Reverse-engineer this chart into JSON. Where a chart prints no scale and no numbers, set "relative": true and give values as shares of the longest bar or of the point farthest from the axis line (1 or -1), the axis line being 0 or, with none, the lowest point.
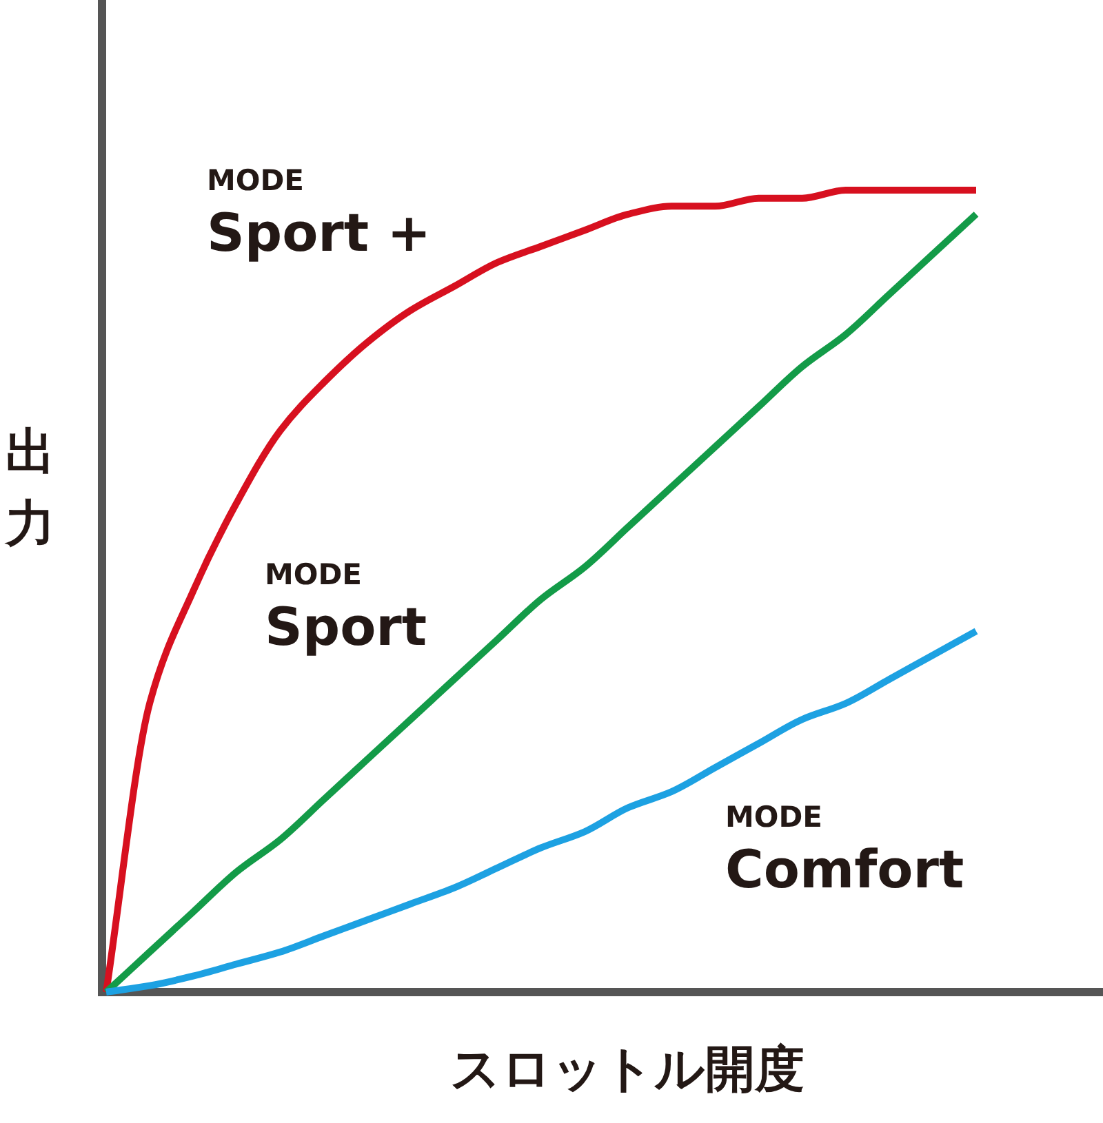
{
  "chart_data": {
    "type": "line",
    "relative": true,
    "xlabel": "スロットル開度",
    "ylabel": "出力",
    "categories": [
      null,
      null,
      null,
      null,
      null,
      null,
      null,
      null,
      null,
      null,
      null,
      null,
      null,
      null,
      null,
      null,
      null,
      null,
      null,
      null,
      null
    ],
    "series": [
      {
        "name": "MODE Sport +",
        "color": "#d7101f",
        "values": [
          0,
          0.36,
          0.5,
          0.61,
          0.7,
          0.76,
          0.81,
          0.85,
          0.88,
          0.91,
          0.93,
          0.95,
          0.97,
          0.98,
          0.98,
          0.99,
          0.99,
          1.0,
          1.0,
          1.0,
          1.0
        ]
      },
      {
        "name": "MODE Sport",
        "color": "#139b48",
        "values": [
          0,
          0.05,
          0.1,
          0.15,
          0.19,
          0.24,
          0.29,
          0.34,
          0.39,
          0.44,
          0.49,
          0.53,
          0.58,
          0.63,
          0.68,
          0.73,
          0.78,
          0.82,
          0.87,
          0.92,
          0.97
        ]
      },
      {
        "name": "MODE Comfort",
        "color": "#1da1e2",
        "values": [
          0,
          0.008,
          0.02,
          0.035,
          0.05,
          0.07,
          0.09,
          0.11,
          0.13,
          0.155,
          0.18,
          0.2,
          0.23,
          0.25,
          0.28,
          0.31,
          0.34,
          0.36,
          0.39,
          0.42,
          0.45
        ]
      }
    ]
  }
}
